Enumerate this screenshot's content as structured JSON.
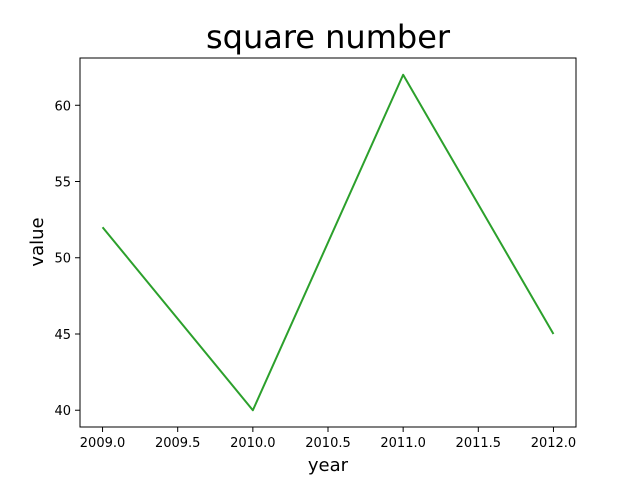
{
  "chart_data": {
    "type": "line",
    "title": "square number",
    "xlabel": "year",
    "ylabel": "value",
    "x": [
      2009,
      2010,
      2011,
      2012
    ],
    "series": [
      {
        "values": [
          52,
          40,
          62,
          45
        ],
        "color": "#2ca02c"
      }
    ],
    "xlim": [
      2008.85,
      2012.15
    ],
    "ylim": [
      38.9,
      63.1
    ],
    "xticks": [
      2009.0,
      2009.5,
      2010.0,
      2010.5,
      2011.0,
      2011.5,
      2012.0
    ],
    "xtick_labels": [
      "2009.0",
      "2009.5",
      "2010.0",
      "2010.5",
      "2011.0",
      "2011.5",
      "2012.0"
    ],
    "yticks": [
      40,
      45,
      50,
      55,
      60
    ],
    "ytick_labels": [
      "40",
      "45",
      "50",
      "55",
      "60"
    ],
    "grid": false,
    "legend": false
  }
}
